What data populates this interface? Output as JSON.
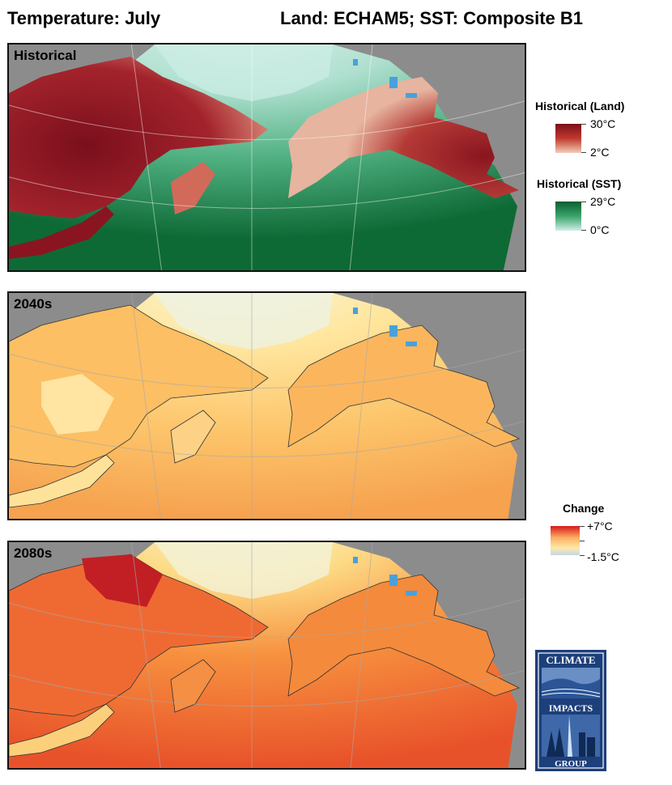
{
  "header": {
    "title_left": "Temperature: July",
    "title_right": "Land: ECHAM5; SST: Composite B1"
  },
  "panels": [
    {
      "label": "Historical",
      "palette": "historical"
    },
    {
      "label": "2040s",
      "palette": "change-2040s"
    },
    {
      "label": "2080s",
      "palette": "change-2080s"
    }
  ],
  "legends": {
    "historical_land": {
      "title": "Historical (Land)",
      "max": "30°C",
      "min": "2°C",
      "colors": [
        "#7a0f1c",
        "#c0392b",
        "#f3cdb8"
      ]
    },
    "historical_sst": {
      "title": "Historical (SST)",
      "max": "29°C",
      "min": "0°C",
      "colors": [
        "#0b5e2e",
        "#3aa36a",
        "#cfeee6"
      ]
    },
    "change": {
      "title": "Change",
      "max": "+7°C",
      "min": "-1.5°C",
      "colors": [
        "#d7191c",
        "#fdae61",
        "#ffe9a8",
        "#c6d6ea"
      ]
    }
  },
  "logo": {
    "top": "CLIMATE",
    "middle": "IMPACTS",
    "bottom": "GROUP"
  },
  "map_colors": {
    "land_outside": "#8c8c8c",
    "lakes": "#4aa0dc",
    "ice": "#b9c6d3"
  }
}
